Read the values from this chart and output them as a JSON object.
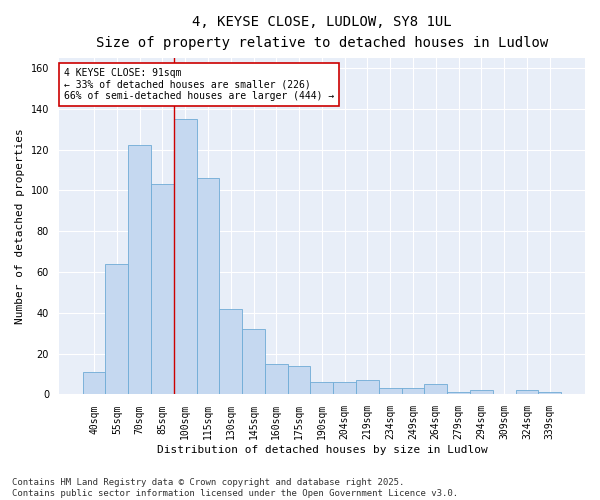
{
  "title_line1": "4, KEYSE CLOSE, LUDLOW, SY8 1UL",
  "title_line2": "Size of property relative to detached houses in Ludlow",
  "xlabel": "Distribution of detached houses by size in Ludlow",
  "ylabel": "Number of detached properties",
  "categories": [
    "40sqm",
    "55sqm",
    "70sqm",
    "85sqm",
    "100sqm",
    "115sqm",
    "130sqm",
    "145sqm",
    "160sqm",
    "175sqm",
    "190sqm",
    "204sqm",
    "219sqm",
    "234sqm",
    "249sqm",
    "264sqm",
    "279sqm",
    "294sqm",
    "309sqm",
    "324sqm",
    "339sqm"
  ],
  "values": [
    11,
    64,
    122,
    103,
    135,
    106,
    42,
    32,
    15,
    14,
    6,
    6,
    7,
    3,
    3,
    5,
    1,
    2,
    0,
    2,
    1
  ],
  "bar_color": "#c5d8f0",
  "bar_edge_color": "#6eabd6",
  "vline_x_index": 3.5,
  "vline_color": "#cc0000",
  "annotation_text": "4 KEYSE CLOSE: 91sqm\n← 33% of detached houses are smaller (226)\n66% of semi-detached houses are larger (444) →",
  "annotation_box_color": "#ffffff",
  "annotation_box_edge_color": "#cc0000",
  "ylim": [
    0,
    165
  ],
  "yticks": [
    0,
    20,
    40,
    60,
    80,
    100,
    120,
    140,
    160
  ],
  "footer_line1": "Contains HM Land Registry data © Crown copyright and database right 2025.",
  "footer_line2": "Contains public sector information licensed under the Open Government Licence v3.0.",
  "plot_bg_color": "#e8eef8",
  "fig_bg_color": "#ffffff",
  "grid_color": "#ffffff",
  "title_fontsize": 10,
  "subtitle_fontsize": 9,
  "axis_label_fontsize": 8,
  "tick_fontsize": 7,
  "annotation_fontsize": 7,
  "footer_fontsize": 6.5
}
